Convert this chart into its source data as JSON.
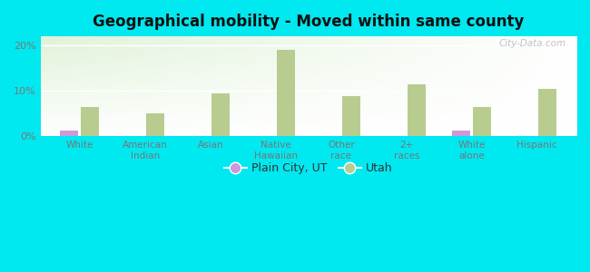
{
  "title": "Geographical mobility - Moved within same county",
  "categories": [
    "White",
    "American\nIndian",
    "Asian",
    "Native\nHawaiian",
    "Other\nrace",
    "2+\nraces",
    "White\nalone",
    "Hispanic"
  ],
  "plain_city_values": [
    1.3,
    0,
    0,
    0,
    0,
    0,
    1.3,
    0
  ],
  "utah_values": [
    6.5,
    5.0,
    9.5,
    19.0,
    8.8,
    11.5,
    6.5,
    10.5
  ],
  "plain_city_color": "#cc99dd",
  "utah_color": "#b8cc90",
  "background_outer": "#00e8f0",
  "ylim": [
    0,
    22
  ],
  "yticks": [
    0,
    10,
    20
  ],
  "ytick_labels": [
    "0%",
    "10%",
    "20%"
  ],
  "bar_width": 0.28,
  "legend_labels": [
    "Plain City, UT",
    "Utah"
  ],
  "watermark": "City-Data.com",
  "tick_color": "#777777",
  "title_color": "#111111"
}
